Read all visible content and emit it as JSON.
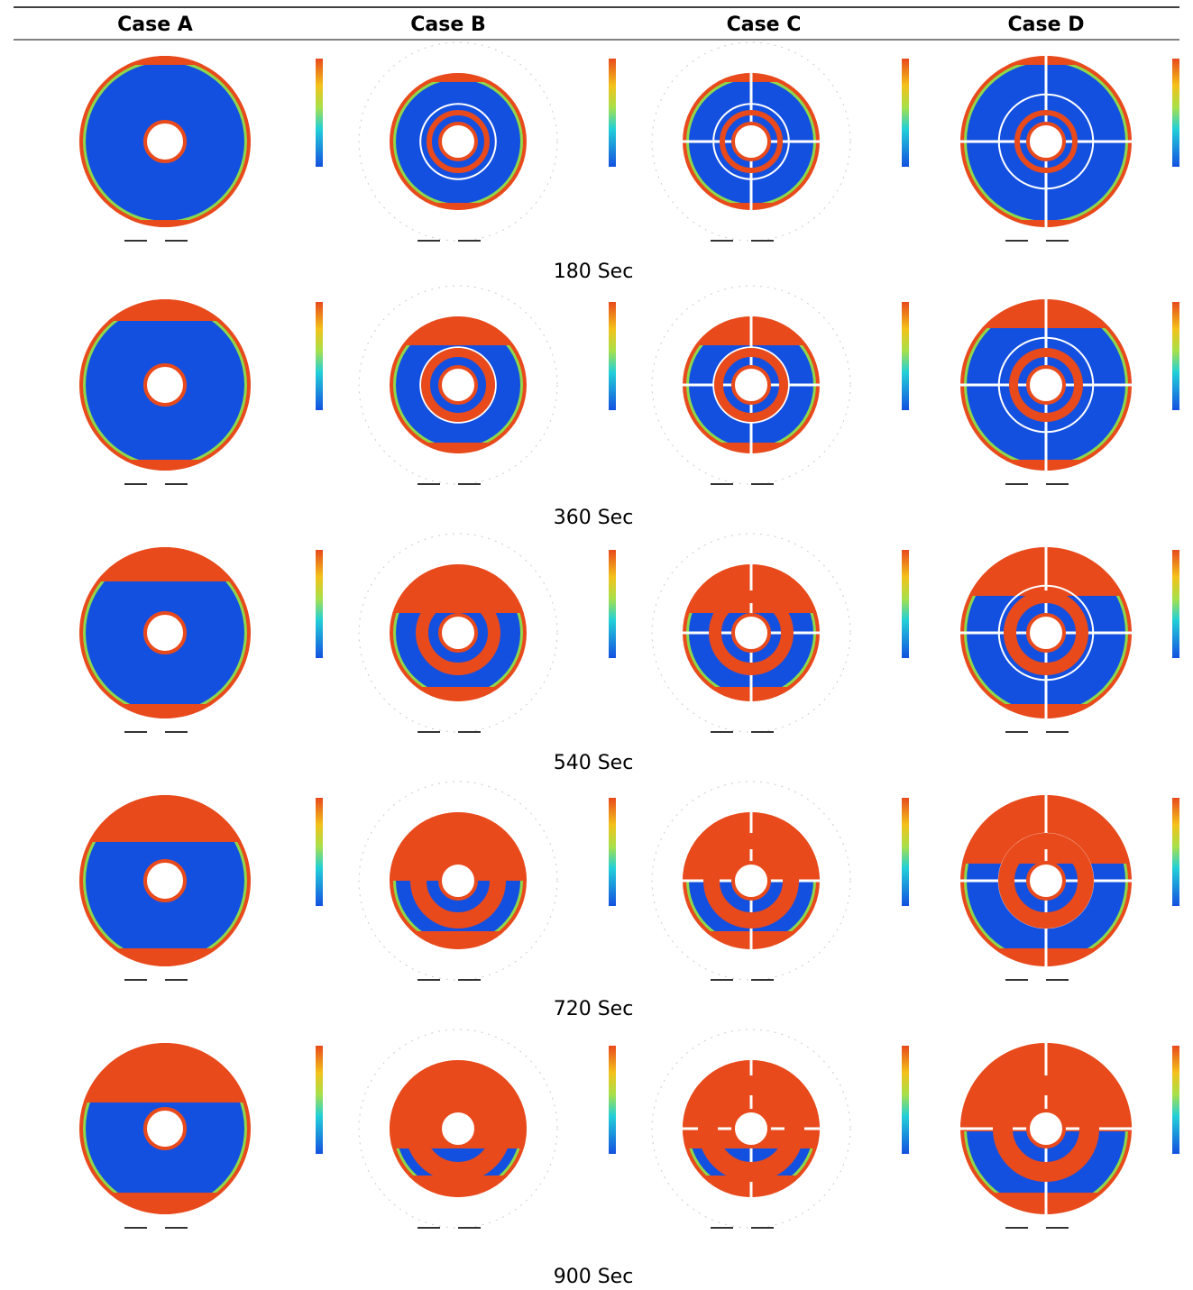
{
  "header": {
    "columns": [
      "Case A",
      "Case B",
      "Case C",
      "Case D"
    ]
  },
  "rows": [
    {
      "label": "180 Sec"
    },
    {
      "label": "360 Sec"
    },
    {
      "label": "540 Sec"
    },
    {
      "label": "720 Sec"
    },
    {
      "label": "900 Sec"
    }
  ]
}
